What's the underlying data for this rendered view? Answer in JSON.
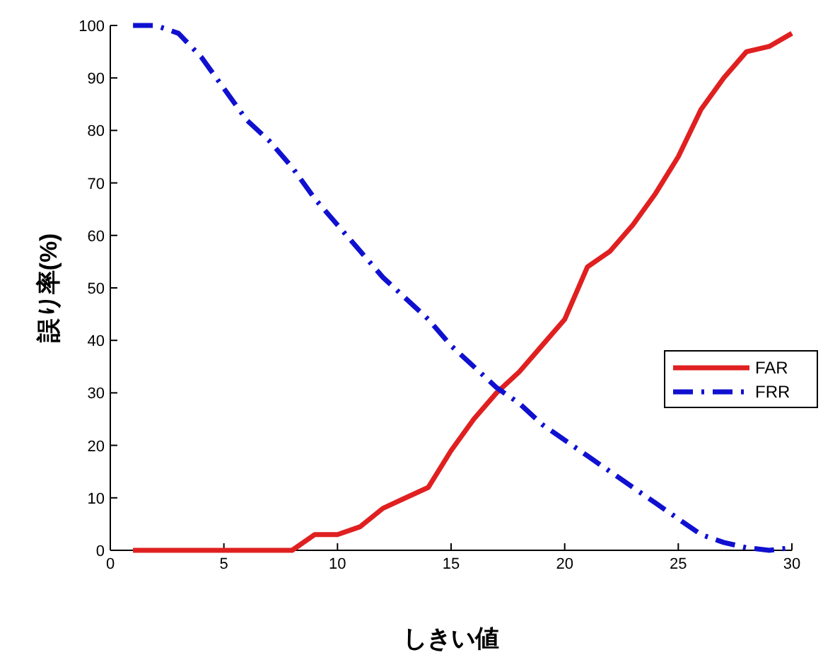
{
  "chart_data": {
    "type": "line",
    "xlabel": "しきい値",
    "ylabel": "誤り率(%)",
    "x": [
      1,
      2,
      3,
      4,
      5,
      6,
      7,
      8,
      9,
      10,
      11,
      12,
      13,
      14,
      15,
      16,
      17,
      18,
      19,
      20,
      21,
      22,
      23,
      24,
      25,
      26,
      27,
      28,
      29,
      30
    ],
    "series": [
      {
        "name": "FAR",
        "color": "#e02020",
        "line_style": "solid",
        "values": [
          0,
          0,
          0,
          0,
          0,
          0,
          0,
          0,
          3,
          3,
          4.5,
          8,
          10,
          12,
          19,
          25,
          30,
          34,
          39,
          44,
          54,
          57,
          62,
          68,
          75,
          84,
          90,
          95,
          96,
          98.5
        ]
      },
      {
        "name": "FRR",
        "color": "#1010d0",
        "line_style": "dashdot",
        "values": [
          100,
          100,
          98.5,
          94,
          88,
          82,
          78,
          73,
          67,
          62,
          57,
          52,
          48,
          44,
          39,
          35,
          31,
          28,
          24,
          21,
          18,
          15,
          12,
          9,
          6,
          3,
          1.5,
          0.5,
          0,
          0.5
        ]
      }
    ],
    "xlim": [
      0,
      30
    ],
    "xticks": [
      0,
      5,
      10,
      15,
      20,
      25,
      30
    ],
    "ylim": [
      0,
      100
    ],
    "yticks": [
      0,
      10,
      20,
      30,
      40,
      50,
      60,
      70,
      80,
      90,
      100
    ],
    "legend": "right",
    "grid": false
  }
}
